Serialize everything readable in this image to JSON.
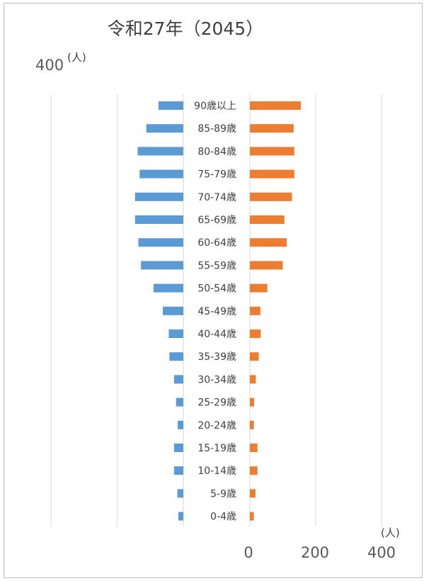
{
  "chart_data": {
    "type": "bar",
    "title": "令和27年（2045）",
    "unit_label": "(人)",
    "categories": [
      "90歳以上",
      "85-89歳",
      "80-84歳",
      "75-79歳",
      "70-74歳",
      "65-69歳",
      "60-64歳",
      "55-59歳",
      "50-54歳",
      "45-49歳",
      "40-44歳",
      "35-39歳",
      "30-34歳",
      "25-29歳",
      "20-24歳",
      "15-19歳",
      "10-14歳",
      "5-9歳",
      "0-4歳"
    ],
    "series": [
      {
        "side": "left",
        "color": "#5b9bd5",
        "values": [
          75,
          112,
          138,
          132,
          146,
          146,
          136,
          128,
          90,
          62,
          44,
          42,
          28,
          22,
          17,
          28,
          28,
          18,
          15
        ]
      },
      {
        "side": "right",
        "color": "#ed7d31",
        "values": [
          155,
          133,
          135,
          135,
          128,
          105,
          112,
          100,
          53,
          32,
          33,
          27,
          18,
          13,
          12,
          23,
          23,
          17,
          12
        ]
      }
    ],
    "left_axis": {
      "ticks": [
        400
      ],
      "range": [
        400,
        0
      ]
    },
    "right_axis": {
      "ticks": [
        0,
        200,
        400
      ],
      "range": [
        0,
        400
      ]
    },
    "grid": true
  }
}
